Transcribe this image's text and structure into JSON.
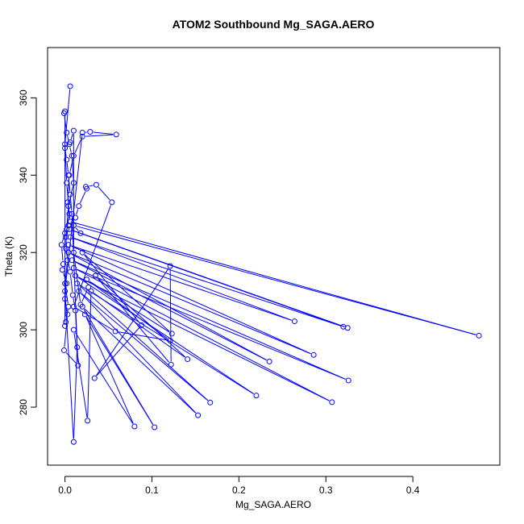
{
  "chart_data": {
    "type": "line",
    "title": "ATOM2 Southbound Mg_SAGA.AERO",
    "xlabel": "Mg_SAGA.AERO",
    "ylabel": "Theta (K)",
    "xlim": [
      -0.02,
      0.5
    ],
    "ylim": [
      265,
      373
    ],
    "x_ticks": [
      0.0,
      0.1,
      0.2,
      0.3,
      0.4
    ],
    "x_tick_labels": [
      "0.0",
      "0.1",
      "0.2",
      "0.3",
      "0.4"
    ],
    "y_ticks": [
      280,
      300,
      320,
      340,
      360
    ],
    "y_tick_labels": [
      "280",
      "300",
      "320",
      "340",
      "360"
    ],
    "grid": false,
    "series": [
      {
        "color": "#0000ff",
        "marker": "open-circle",
        "points": [
          [
            0.006,
            363.0
          ],
          [
            0.0,
            348.0
          ],
          [
            0.002,
            338.0
          ],
          [
            0.005,
            330.0
          ],
          [
            0.001,
            324.0
          ],
          [
            0.003,
            318.0
          ],
          [
            0.0,
            312.0
          ],
          [
            0.004,
            306.0
          ],
          [
            0.001,
            302.0
          ],
          [
            0.0,
            301.0
          ],
          [
            0.0,
            356.5
          ],
          [
            -0.001,
            356.0
          ],
          [
            0.002,
            351.0
          ],
          [
            0.005,
            348.0
          ],
          [
            0.008,
            345.0
          ],
          [
            0.01,
            338.0
          ],
          [
            0.004,
            332.0
          ],
          [
            0.002,
            326.0
          ],
          [
            0.001,
            321.0
          ],
          [
            0.006,
            315.0
          ],
          [
            0.009,
            309.0
          ],
          [
            0.012,
            305.0
          ],
          [
            0.014,
            295.5
          ],
          [
            0.01,
            271.0
          ],
          [
            0.0,
            310.0
          ],
          [
            0.02,
            351.0
          ],
          [
            0.029,
            351.2
          ],
          [
            0.059,
            350.5
          ],
          [
            0.02,
            350.0
          ],
          [
            0.01,
            345.0
          ],
          [
            0.005,
            340.0
          ],
          [
            0.003,
            333.0
          ],
          [
            0.006,
            328.0
          ],
          [
            0.476,
            298.5
          ],
          [
            0.01,
            327.0
          ],
          [
            0.018,
            325.0
          ],
          [
            0.325,
            300.5
          ],
          [
            0.005,
            326.0
          ],
          [
            0.32,
            300.8
          ],
          [
            0.006,
            324.0
          ],
          [
            0.264,
            302.2
          ],
          [
            0.004,
            322.0
          ],
          [
            0.286,
            293.5
          ],
          [
            0.004,
            320.0
          ],
          [
            0.235,
            291.8
          ],
          [
            0.008,
            318.0
          ],
          [
            0.326,
            286.9
          ],
          [
            0.01,
            316.0
          ],
          [
            0.307,
            281.3
          ],
          [
            0.012,
            314.0
          ],
          [
            0.22,
            283.0
          ],
          [
            0.014,
            312.0
          ],
          [
            0.167,
            281.2
          ],
          [
            0.016,
            310.0
          ],
          [
            0.153,
            277.9
          ],
          [
            0.02,
            306.0
          ],
          [
            0.103,
            274.8
          ],
          [
            0.023,
            304.0
          ],
          [
            0.08,
            275.0
          ],
          [
            0.01,
            300.0
          ],
          [
            0.026,
            276.5
          ],
          [
            0.03,
            310.0
          ],
          [
            0.141,
            292.4
          ],
          [
            0.035,
            314.0
          ],
          [
            0.122,
            291.0
          ],
          [
            0.121,
            316.5
          ],
          [
            0.034,
            287.5
          ],
          [
            0.088,
            301.2
          ],
          [
            0.02,
            320.0
          ],
          [
            0.123,
            299.0
          ],
          [
            0.025,
            313.0
          ],
          [
            0.121,
            297.2
          ],
          [
            0.058,
            299.6
          ],
          [
            0.01,
            306.0
          ],
          [
            0.054,
            333.0
          ],
          [
            0.036,
            337.5
          ],
          [
            0.024,
            337.0
          ],
          [
            0.025,
            336.5
          ],
          [
            0.016,
            332.0
          ],
          [
            0.012,
            329.0
          ],
          [
            0.004,
            327.0
          ],
          [
            0.0,
            325.0
          ],
          [
            -0.004,
            322.0
          ],
          [
            -0.002,
            317.0
          ],
          [
            -0.003,
            315.5
          ],
          [
            0.002,
            312.0
          ],
          [
            0.0,
            308.0
          ],
          [
            0.003,
            304.0
          ],
          [
            -0.001,
            294.7
          ],
          [
            0.015,
            290.8
          ],
          [
            0.008,
            330.0
          ],
          [
            0.006,
            335.0
          ],
          [
            0.004,
            340.0
          ],
          [
            0.002,
            344.0
          ],
          [
            0.0,
            347.0
          ],
          [
            0.006,
            348.5
          ],
          [
            0.01,
            351.5
          ],
          [
            0.01,
            320.0
          ],
          [
            0.018,
            306.5
          ],
          [
            0.027,
            311.0
          ]
        ]
      }
    ]
  }
}
